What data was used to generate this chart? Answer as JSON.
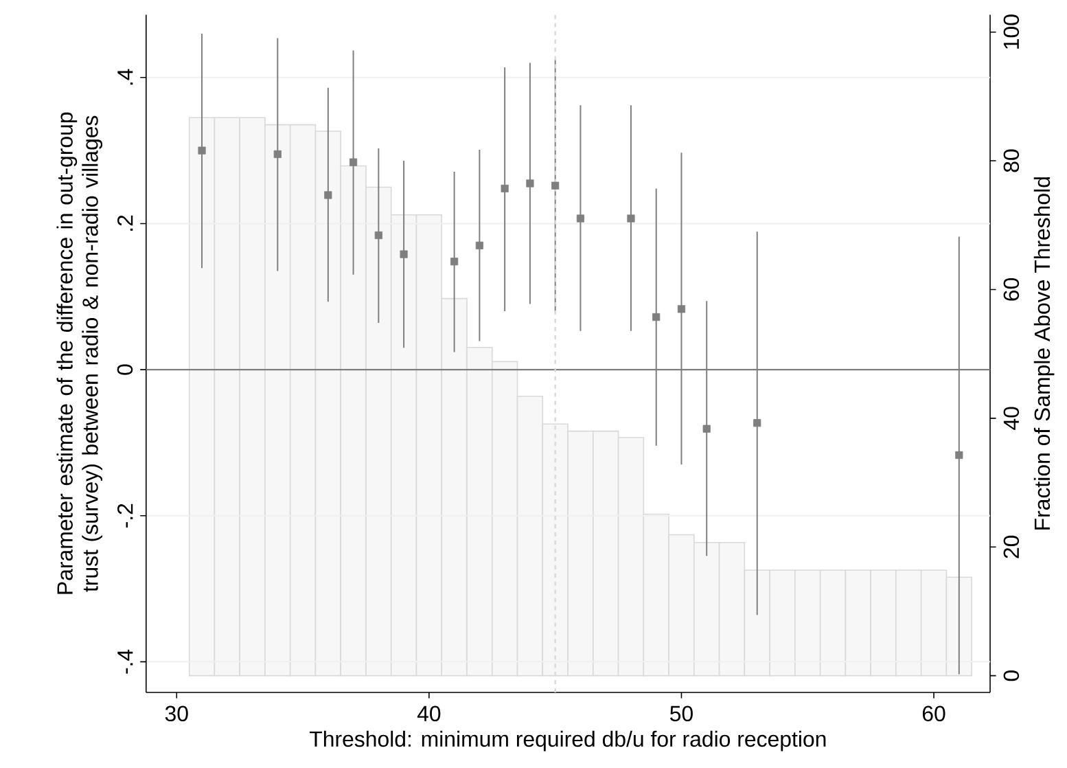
{
  "chart_data": {
    "type": "bar",
    "xlabel": "Threshold: minimum required db/u for radio reception",
    "ylabel": "Parameter estimate of the difference in out-group trust (survey) between radio & non-radio villages",
    "y2label": "Fraction of Sample Above Threshold",
    "xlim": [
      28.79,
      62.23
    ],
    "xticks": [
      30,
      40,
      50,
      60
    ],
    "ylim": [
      -0.442,
      0.486
    ],
    "yticks": [
      {
        "value": -0.4,
        "label": "-.4"
      },
      {
        "value": -0.2,
        "label": "-.2"
      },
      0,
      {
        "value": 0.2,
        "label": ".2"
      },
      {
        "value": 0.4,
        "label": ".4"
      }
    ],
    "y2lim": [
      -2.6,
      102.7
    ],
    "y2ticks": [
      0,
      20,
      40,
      60,
      80,
      100
    ],
    "grid": "y",
    "marker": "square",
    "ref_lines": [
      {
        "axis": "y",
        "value": 0,
        "color": "#7f7f7f",
        "line_style": "solid"
      },
      {
        "axis": "x",
        "value": 45,
        "color": "#d9d9d9",
        "line_style": "dashed"
      }
    ],
    "series": [
      {
        "axis": "y2",
        "color": "#f7f7f7",
        "x": [
          31,
          32,
          33,
          34,
          35,
          36,
          37,
          38,
          39,
          40,
          41,
          42,
          43,
          44,
          45,
          46,
          47,
          48,
          49,
          50,
          51,
          52,
          53,
          54,
          55,
          56,
          57,
          58,
          59,
          60,
          61
        ],
        "values": [
          86.7,
          86.7,
          86.7,
          85.6,
          85.6,
          84.6,
          79.2,
          75.9,
          71.6,
          71.6,
          58.6,
          51.0,
          48.8,
          43.4,
          39.1,
          38.0,
          38.0,
          37.0,
          25.1,
          21.9,
          20.7,
          20.7,
          16.4,
          16.4,
          16.4,
          16.4,
          16.4,
          16.4,
          16.4,
          16.4,
          15.3
        ]
      },
      {
        "type": "scatter",
        "color": "#7f7f7f",
        "x": [
          31,
          34,
          36,
          37,
          38,
          39,
          41,
          42,
          43,
          44,
          45,
          46,
          48,
          49,
          50,
          51,
          53,
          61
        ],
        "values": [
          0.3,
          0.295,
          0.239,
          0.284,
          0.184,
          0.158,
          0.148,
          0.17,
          0.248,
          0.255,
          0.252,
          0.207,
          0.207,
          0.072,
          0.083,
          -0.081,
          -0.073,
          -0.117
        ],
        "errors": [
          [
            0.139,
            0.46
          ],
          [
            0.135,
            0.454
          ],
          [
            0.093,
            0.386
          ],
          [
            0.13,
            0.437
          ],
          [
            0.064,
            0.303
          ],
          [
            0.03,
            0.286
          ],
          [
            0.024,
            0.271
          ],
          [
            0.039,
            0.301
          ],
          [
            0.08,
            0.414
          ],
          [
            0.09,
            0.42
          ],
          [
            0.079,
            0.424
          ],
          [
            0.053,
            0.362
          ],
          [
            0.053,
            0.362
          ],
          [
            -0.104,
            0.248
          ],
          [
            -0.13,
            0.297
          ],
          [
            -0.255,
            0.094
          ],
          [
            -0.336,
            0.189
          ],
          [
            -0.417,
            0.182
          ]
        ]
      }
    ]
  }
}
